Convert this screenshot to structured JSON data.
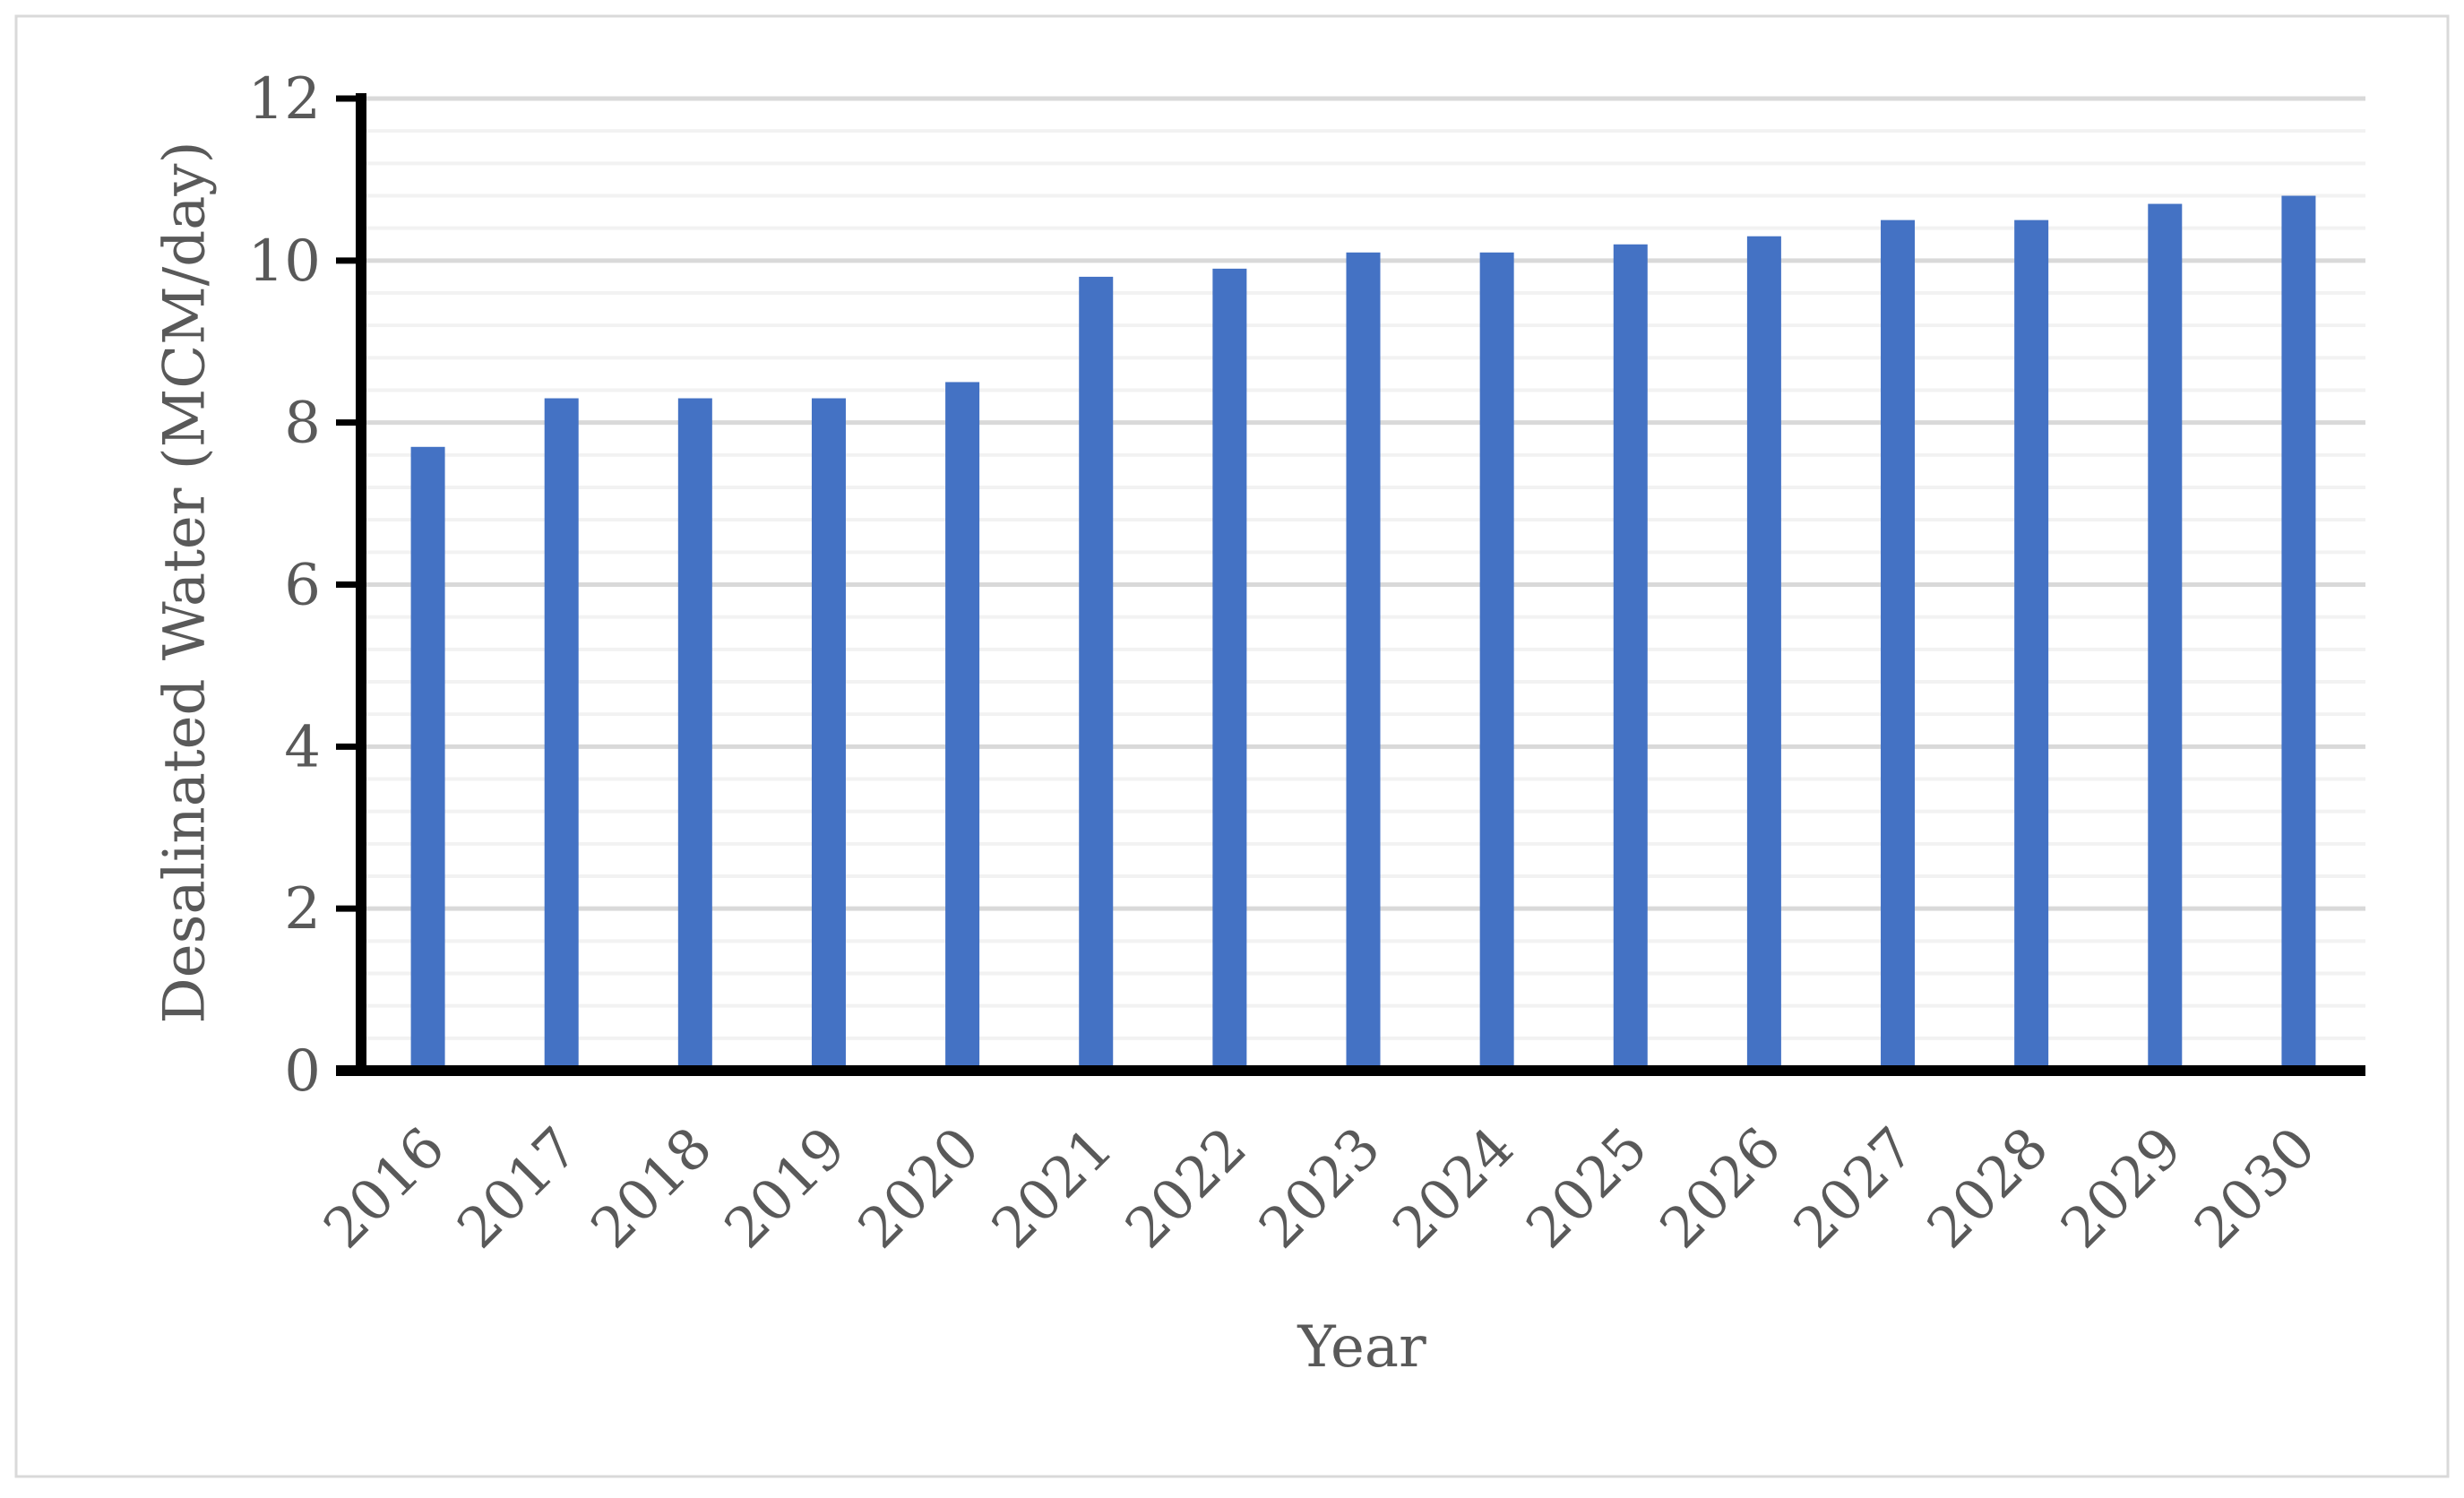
{
  "chart_data": {
    "type": "bar",
    "title": "",
    "xlabel": "Year",
    "ylabel": "Desalinated Water (MCM/day)",
    "categories": [
      "2016",
      "2017",
      "2018",
      "2019",
      "2020",
      "2021",
      "2022",
      "2023",
      "2024",
      "2025",
      "2026",
      "2027",
      "2028",
      "2029",
      "2030"
    ],
    "values": [
      7.7,
      8.3,
      8.3,
      8.3,
      8.5,
      9.8,
      9.9,
      10.1,
      10.1,
      10.2,
      10.3,
      10.5,
      10.5,
      10.7,
      10.8
    ],
    "ylim": [
      0,
      12
    ],
    "yticks": [
      "0",
      "2",
      "4",
      "6",
      "8",
      "10",
      "12"
    ],
    "grid": true,
    "minor_grid": true,
    "legend": "none",
    "colors": {
      "bar": "#4472C4",
      "major_grid": "#D9D9D9",
      "minor_grid": "#F2F2F2",
      "axis": "#000000",
      "text": "#595959",
      "frame": "#D9D9D9"
    }
  }
}
